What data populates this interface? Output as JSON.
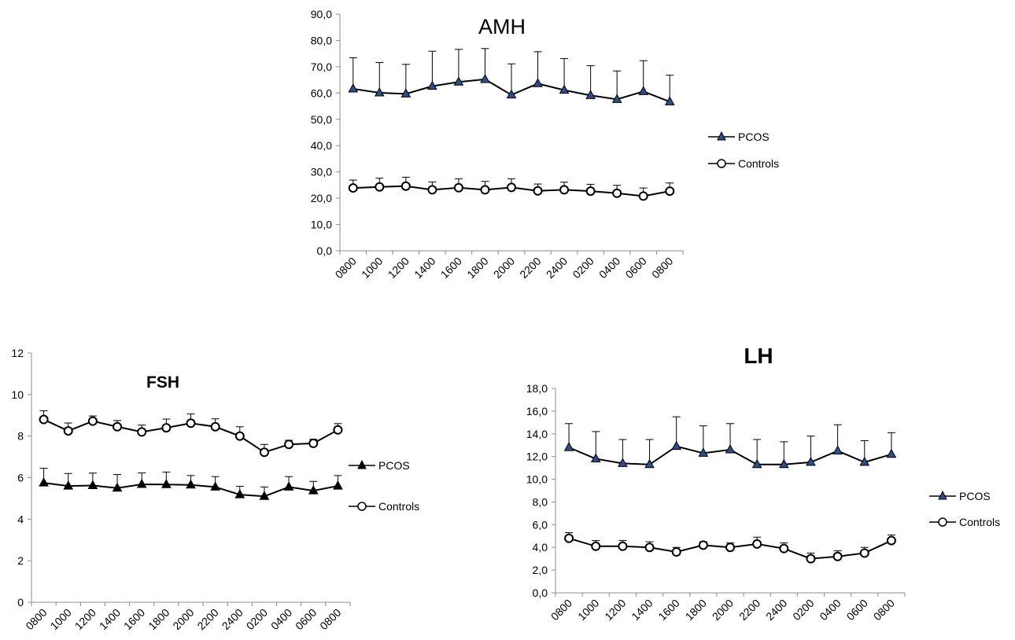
{
  "chart_data": [
    {
      "id": "amh",
      "type": "line",
      "title": "AMH",
      "categories": [
        "0800",
        "1000",
        "1200",
        "1400",
        "1600",
        "1800",
        "2000",
        "2200",
        "2400",
        "0200",
        "0400",
        "0600",
        "0800"
      ],
      "ylim": [
        0,
        90
      ],
      "ystep": 10,
      "ytick_format": "comma1",
      "grid": false,
      "legend_position": "right",
      "series": [
        {
          "name": "PCOS",
          "marker": "triangle",
          "values": [
            61.6,
            60.1,
            59.7,
            62.6,
            64.2,
            65.2,
            59.3,
            63.6,
            61.1,
            59.1,
            57.6,
            60.6,
            56.7
          ],
          "errors": [
            11.8,
            11.5,
            11.2,
            13.3,
            12.4,
            11.7,
            11.8,
            12.1,
            12.0,
            11.3,
            10.8,
            11.7,
            10.1
          ]
        },
        {
          "name": "Controls",
          "marker": "circle",
          "values": [
            23.9,
            24.3,
            24.6,
            23.2,
            24.0,
            23.2,
            24.1,
            22.8,
            23.2,
            22.7,
            21.9,
            20.8,
            22.7
          ],
          "errors": [
            3.0,
            3.3,
            3.4,
            3.0,
            3.4,
            3.2,
            3.3,
            2.6,
            2.9,
            2.6,
            3.0,
            3.1,
            3.1
          ]
        }
      ]
    },
    {
      "id": "fsh",
      "type": "line",
      "title": "FSH",
      "categories": [
        "0800",
        "1000",
        "1200",
        "1400",
        "1600",
        "1800",
        "2000",
        "2200",
        "2400",
        "0200",
        "0400",
        "0600",
        "0800"
      ],
      "ylim": [
        0,
        12
      ],
      "ystep": 2,
      "ytick_format": "int",
      "grid": false,
      "legend_position": "right",
      "series": [
        {
          "name": "PCOS",
          "marker": "triangle",
          "values": [
            5.75,
            5.6,
            5.62,
            5.5,
            5.68,
            5.67,
            5.65,
            5.55,
            5.18,
            5.1,
            5.55,
            5.37,
            5.6
          ],
          "errors": [
            0.7,
            0.6,
            0.6,
            0.65,
            0.55,
            0.6,
            0.45,
            0.5,
            0.4,
            0.45,
            0.5,
            0.45,
            0.5
          ]
        },
        {
          "name": "Controls",
          "marker": "circle",
          "values": [
            8.8,
            8.25,
            8.72,
            8.45,
            8.2,
            8.4,
            8.62,
            8.45,
            8.0,
            7.22,
            7.6,
            7.65,
            8.3
          ],
          "errors": [
            0.42,
            0.38,
            0.25,
            0.3,
            0.33,
            0.42,
            0.45,
            0.38,
            0.45,
            0.38,
            0.2,
            0.2,
            0.3
          ]
        }
      ]
    },
    {
      "id": "lh",
      "type": "line",
      "title": "LH",
      "categories": [
        "0800",
        "1000",
        "1200",
        "1400",
        "1600",
        "1800",
        "2000",
        "2200",
        "2400",
        "0200",
        "0400",
        "0600",
        "0800"
      ],
      "ylim": [
        0,
        18
      ],
      "ystep": 2,
      "ytick_format": "comma1",
      "grid": false,
      "legend_position": "right",
      "series": [
        {
          "name": "PCOS",
          "marker": "triangle",
          "values": [
            12.8,
            11.8,
            11.4,
            11.3,
            12.9,
            12.3,
            12.6,
            11.3,
            11.3,
            11.5,
            12.5,
            11.5,
            12.2
          ],
          "errors": [
            2.1,
            2.4,
            2.1,
            2.2,
            2.6,
            2.4,
            2.3,
            2.2,
            2.0,
            2.3,
            2.3,
            1.9,
            1.9
          ]
        },
        {
          "name": "Controls",
          "marker": "circle",
          "values": [
            4.8,
            4.1,
            4.1,
            4.0,
            3.6,
            4.2,
            4.0,
            4.3,
            3.9,
            3.0,
            3.2,
            3.5,
            4.6
          ],
          "errors": [
            0.5,
            0.5,
            0.5,
            0.5,
            0.4,
            0.3,
            0.4,
            0.6,
            0.5,
            0.5,
            0.5,
            0.5,
            0.5
          ]
        }
      ]
    }
  ]
}
